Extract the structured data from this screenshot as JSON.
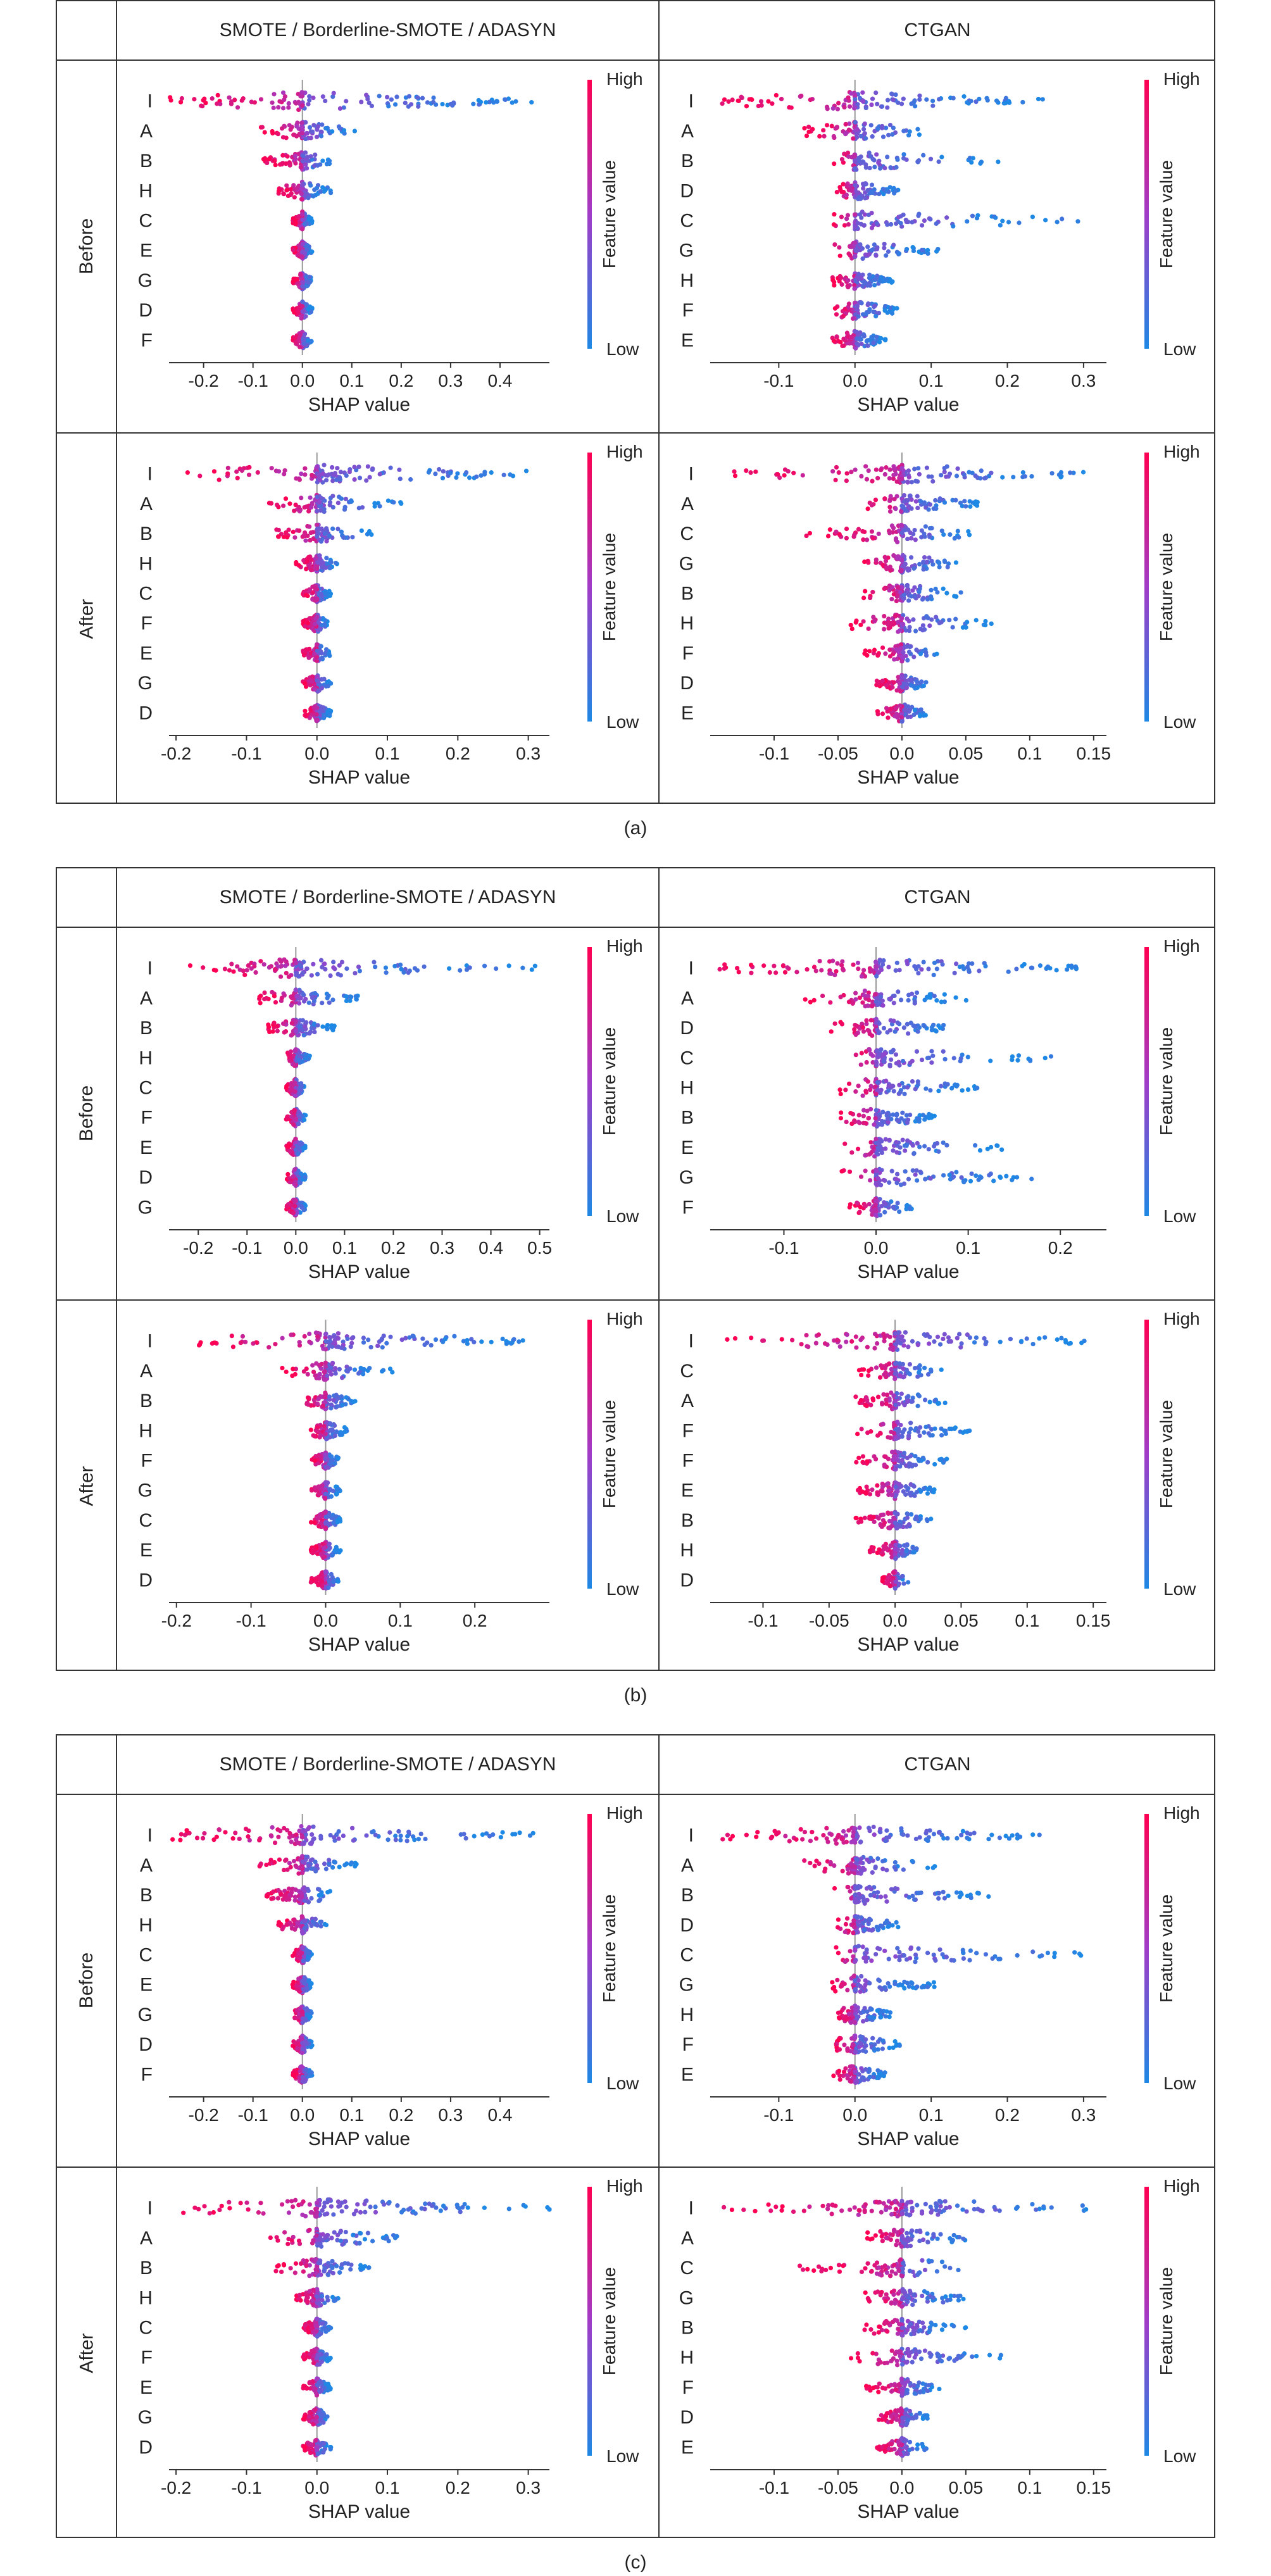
{
  "colors": {
    "high": "#ff0052",
    "low": "#1e88e5",
    "axis": "#333333",
    "zero": "#999999"
  },
  "headers": {
    "left": "SMOTE / Borderline-SMOTE  / ADASYN",
    "right": "CTGAN"
  },
  "rows": {
    "before": "Before",
    "after": "After"
  },
  "captions": [
    "(a)",
    "(b)",
    "(c)"
  ],
  "colorbar": {
    "high": "High",
    "low": "Low",
    "label": "Feature value"
  },
  "chart_data": [
    {
      "type": "scatter",
      "panel": "(a)",
      "row": "Before",
      "method": "SMOTE / Borderline-SMOTE  / ADASYN",
      "xlabel": "SHAP value",
      "ticks": [
        "-0.2",
        "-0.1",
        "0.0",
        "0.1",
        "0.2",
        "0.3",
        "0.4"
      ],
      "xlim": [
        -0.27,
        0.5
      ],
      "features": [
        "I",
        "A",
        "B",
        "H",
        "C",
        "E",
        "G",
        "D",
        "F"
      ],
      "spread": [
        [
          -0.27,
          0.47
        ],
        [
          -0.09,
          0.11
        ],
        [
          -0.08,
          0.06
        ],
        [
          -0.05,
          0.06
        ],
        [
          -0.02,
          0.02
        ],
        [
          -0.02,
          0.02
        ],
        [
          -0.02,
          0.02
        ],
        [
          -0.02,
          0.02
        ],
        [
          -0.02,
          0.02
        ]
      ]
    },
    {
      "type": "scatter",
      "panel": "(a)",
      "row": "Before",
      "method": "CTGAN",
      "xlabel": "SHAP value",
      "ticks": [
        "-0.1",
        "0.0",
        "0.1",
        "0.2",
        "0.3"
      ],
      "xlim": [
        -0.19,
        0.33
      ],
      "features": [
        "I",
        "A",
        "B",
        "D",
        "C",
        "G",
        "H",
        "F",
        "E"
      ],
      "spread": [
        [
          -0.18,
          0.25
        ],
        [
          -0.07,
          0.11
        ],
        [
          -0.03,
          0.19
        ],
        [
          -0.03,
          0.06
        ],
        [
          -0.03,
          0.3
        ],
        [
          -0.03,
          0.11
        ],
        [
          -0.03,
          0.05
        ],
        [
          -0.03,
          0.06
        ],
        [
          -0.03,
          0.04
        ]
      ]
    },
    {
      "type": "scatter",
      "panel": "(a)",
      "row": "After",
      "method": "SMOTE / Borderline-SMOTE  / ADASYN",
      "xlabel": "SHAP value",
      "ticks": [
        "-0.2",
        "-0.1",
        "0.0",
        "0.1",
        "0.2",
        "0.3"
      ],
      "xlim": [
        -0.21,
        0.33
      ],
      "features": [
        "I",
        "A",
        "B",
        "H",
        "C",
        "F",
        "E",
        "G",
        "D"
      ],
      "spread": [
        [
          -0.19,
          0.33
        ],
        [
          -0.07,
          0.12
        ],
        [
          -0.06,
          0.08
        ],
        [
          -0.03,
          0.03
        ],
        [
          -0.02,
          0.02
        ],
        [
          -0.02,
          0.02
        ],
        [
          -0.02,
          0.02
        ],
        [
          -0.02,
          0.02
        ],
        [
          -0.02,
          0.02
        ]
      ]
    },
    {
      "type": "scatter",
      "panel": "(a)",
      "row": "After",
      "method": "CTGAN",
      "xlabel": "SHAP value",
      "ticks": [
        "-0.1",
        "-0.05",
        "0.0",
        "0.05",
        "0.1",
        "0.15"
      ],
      "xlim": [
        -0.15,
        0.16
      ],
      "features": [
        "I",
        "A",
        "C",
        "G",
        "B",
        "H",
        "F",
        "D",
        "E"
      ],
      "spread": [
        [
          -0.14,
          0.15
        ],
        [
          -0.03,
          0.06
        ],
        [
          -0.08,
          0.06
        ],
        [
          -0.03,
          0.05
        ],
        [
          -0.03,
          0.05
        ],
        [
          -0.04,
          0.08
        ],
        [
          -0.03,
          0.03
        ],
        [
          -0.02,
          0.02
        ],
        [
          -0.02,
          0.02
        ]
      ]
    },
    {
      "type": "scatter",
      "panel": "(b)",
      "row": "Before",
      "method": "SMOTE / Borderline-SMOTE  / ADASYN",
      "xlabel": "SHAP value",
      "ticks": [
        "-0.2",
        "-0.1",
        "0.0",
        "0.1",
        "0.2",
        "0.3",
        "0.4",
        "0.5"
      ],
      "xlim": [
        -0.26,
        0.52
      ],
      "features": [
        "I",
        "A",
        "B",
        "H",
        "C",
        "F",
        "E",
        "D",
        "G"
      ],
      "spread": [
        [
          -0.22,
          0.5
        ],
        [
          -0.08,
          0.13
        ],
        [
          -0.06,
          0.08
        ],
        [
          -0.02,
          0.03
        ],
        [
          -0.02,
          0.02
        ],
        [
          -0.02,
          0.02
        ],
        [
          -0.02,
          0.02
        ],
        [
          -0.02,
          0.02
        ],
        [
          -0.02,
          0.02
        ]
      ]
    },
    {
      "type": "scatter",
      "panel": "(b)",
      "row": "Before",
      "method": "CTGAN",
      "xlabel": "SHAP value",
      "ticks": [
        "-0.1",
        "0.0",
        "0.1",
        "0.2"
      ],
      "xlim": [
        -0.18,
        0.25
      ],
      "features": [
        "I",
        "A",
        "D",
        "C",
        "H",
        "B",
        "E",
        "G",
        "F"
      ],
      "spread": [
        [
          -0.17,
          0.22
        ],
        [
          -0.08,
          0.1
        ],
        [
          -0.05,
          0.08
        ],
        [
          -0.03,
          0.19
        ],
        [
          -0.04,
          0.11
        ],
        [
          -0.04,
          0.07
        ],
        [
          -0.04,
          0.14
        ],
        [
          -0.04,
          0.17
        ],
        [
          -0.03,
          0.04
        ]
      ]
    },
    {
      "type": "scatter",
      "panel": "(b)",
      "row": "After",
      "method": "SMOTE / Borderline-SMOTE  / ADASYN",
      "xlabel": "SHAP value",
      "ticks": [
        "-0.2",
        "-0.1",
        "0.0",
        "0.1",
        "0.2"
      ],
      "xlim": [
        -0.21,
        0.3
      ],
      "features": [
        "I",
        "A",
        "B",
        "H",
        "F",
        "G",
        "C",
        "E",
        "D"
      ],
      "spread": [
        [
          -0.19,
          0.28
        ],
        [
          -0.06,
          0.09
        ],
        [
          -0.03,
          0.04
        ],
        [
          -0.02,
          0.03
        ],
        [
          -0.02,
          0.02
        ],
        [
          -0.02,
          0.02
        ],
        [
          -0.02,
          0.02
        ],
        [
          -0.02,
          0.02
        ],
        [
          -0.02,
          0.02
        ]
      ]
    },
    {
      "type": "scatter",
      "panel": "(b)",
      "row": "After",
      "method": "CTGAN",
      "xlabel": "SHAP value",
      "ticks": [
        "-0.1",
        "-0.05",
        "0.0",
        "0.05",
        "0.1",
        "0.15"
      ],
      "xlim": [
        -0.14,
        0.16
      ],
      "features": [
        "I",
        "C",
        "A",
        "F",
        "F",
        "E",
        "B",
        "H",
        "D"
      ],
      "spread": [
        [
          -0.13,
          0.15
        ],
        [
          -0.03,
          0.04
        ],
        [
          -0.03,
          0.04
        ],
        [
          -0.03,
          0.06
        ],
        [
          -0.03,
          0.04
        ],
        [
          -0.03,
          0.03
        ],
        [
          -0.03,
          0.03
        ],
        [
          -0.02,
          0.02
        ],
        [
          -0.01,
          0.01
        ]
      ]
    },
    {
      "type": "scatter",
      "panel": "(c)",
      "row": "Before",
      "method": "SMOTE / Borderline-SMOTE  / ADASYN",
      "xlabel": "SHAP value",
      "ticks": [
        "-0.2",
        "-0.1",
        "0.0",
        "0.1",
        "0.2",
        "0.3",
        "0.4"
      ],
      "xlim": [
        -0.27,
        0.5
      ],
      "features": [
        "I",
        "A",
        "B",
        "H",
        "C",
        "E",
        "G",
        "D",
        "F"
      ],
      "spread": [
        [
          -0.27,
          0.47
        ],
        [
          -0.09,
          0.11
        ],
        [
          -0.08,
          0.06
        ],
        [
          -0.05,
          0.06
        ],
        [
          -0.02,
          0.02
        ],
        [
          -0.02,
          0.02
        ],
        [
          -0.02,
          0.02
        ],
        [
          -0.02,
          0.02
        ],
        [
          -0.02,
          0.02
        ]
      ]
    },
    {
      "type": "scatter",
      "panel": "(c)",
      "row": "Before",
      "method": "CTGAN",
      "xlabel": "SHAP value",
      "ticks": [
        "-0.1",
        "0.0",
        "0.1",
        "0.2",
        "0.3"
      ],
      "xlim": [
        -0.19,
        0.33
      ],
      "features": [
        "I",
        "A",
        "B",
        "D",
        "C",
        "G",
        "H",
        "F",
        "E"
      ],
      "spread": [
        [
          -0.18,
          0.25
        ],
        [
          -0.07,
          0.11
        ],
        [
          -0.03,
          0.19
        ],
        [
          -0.03,
          0.06
        ],
        [
          -0.03,
          0.3
        ],
        [
          -0.03,
          0.11
        ],
        [
          -0.03,
          0.05
        ],
        [
          -0.03,
          0.06
        ],
        [
          -0.03,
          0.04
        ]
      ]
    },
    {
      "type": "scatter",
      "panel": "(c)",
      "row": "After",
      "method": "SMOTE / Borderline-SMOTE  / ADASYN",
      "xlabel": "SHAP value",
      "ticks": [
        "-0.2",
        "-0.1",
        "0.0",
        "0.1",
        "0.2",
        "0.3"
      ],
      "xlim": [
        -0.21,
        0.33
      ],
      "features": [
        "I",
        "A",
        "B",
        "H",
        "C",
        "F",
        "E",
        "G",
        "D"
      ],
      "spread": [
        [
          -0.19,
          0.33
        ],
        [
          -0.07,
          0.12
        ],
        [
          -0.06,
          0.08
        ],
        [
          -0.03,
          0.03
        ],
        [
          -0.02,
          0.02
        ],
        [
          -0.02,
          0.02
        ],
        [
          -0.02,
          0.02
        ],
        [
          -0.02,
          0.02
        ],
        [
          -0.02,
          0.02
        ]
      ]
    },
    {
      "type": "scatter",
      "panel": "(c)",
      "row": "After",
      "method": "CTGAN",
      "xlabel": "SHAP value",
      "ticks": [
        "-0.1",
        "-0.05",
        "0.0",
        "0.05",
        "0.1",
        "0.15"
      ],
      "xlim": [
        -0.15,
        0.16
      ],
      "features": [
        "I",
        "A",
        "C",
        "G",
        "B",
        "H",
        "F",
        "D",
        "E"
      ],
      "spread": [
        [
          -0.14,
          0.15
        ],
        [
          -0.03,
          0.06
        ],
        [
          -0.08,
          0.06
        ],
        [
          -0.03,
          0.05
        ],
        [
          -0.03,
          0.05
        ],
        [
          -0.04,
          0.08
        ],
        [
          -0.03,
          0.03
        ],
        [
          -0.02,
          0.02
        ],
        [
          -0.02,
          0.02
        ]
      ]
    }
  ]
}
